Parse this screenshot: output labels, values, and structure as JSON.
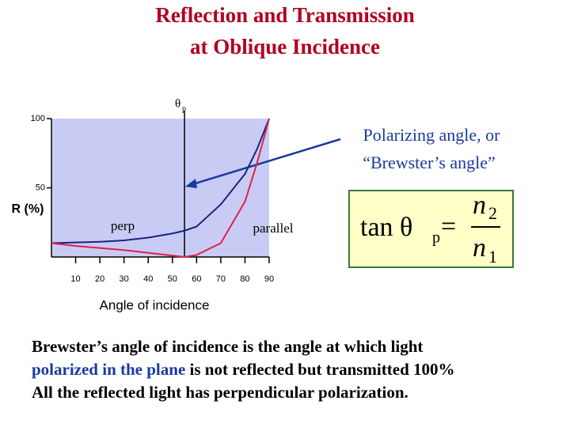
{
  "chart_data": {
    "type": "line",
    "title_lines": [
      "Reflection and Transmission",
      "at Oblique Incidence"
    ],
    "x_label": "Angle of incidence",
    "y_label": "R (%)",
    "x": [
      0,
      10,
      20,
      30,
      40,
      50,
      55,
      60,
      70,
      80,
      85,
      90
    ],
    "series": [
      {
        "name": "perp",
        "color": "#1a237e",
        "values": [
          10,
          10.5,
          11,
          12,
          14,
          17,
          19,
          22,
          38,
          60,
          78,
          100
        ]
      },
      {
        "name": "parallel",
        "color": "#e0204a",
        "values": [
          10,
          8,
          6.5,
          5,
          3,
          1,
          0,
          1.5,
          10,
          40,
          68,
          100
        ]
      }
    ],
    "xlim": [
      0,
      90
    ],
    "xticks": [
      10,
      20,
      30,
      40,
      50,
      60,
      70,
      80,
      90
    ],
    "ylim": [
      0,
      100
    ],
    "yticks": [
      50,
      100
    ],
    "markers": [
      {
        "x": 55,
        "label": "θ",
        "sub": "p"
      }
    ],
    "annotation": [
      "Polarizing angle, or",
      "“Brewster’s angle”"
    ],
    "equation": {
      "lhs": "tan θ",
      "lhs_sub": "p",
      "eq": "=",
      "num": "n",
      "num_sub": "2",
      "den": "n",
      "den_sub": "1"
    }
  },
  "slide": {
    "lines": [
      [
        {
          "text": "Brewster’s angle of incidence is the angle at which light",
          "color": "#000000"
        }
      ],
      [
        {
          "text": "polarized in the plane",
          "color": "#1a3a9c"
        },
        {
          "text": " is not reflected but transmitted 100%",
          "color": "#000000"
        }
      ],
      [
        {
          "text": "All the reflected light has perpendicular  polarization.",
          "color": "#000000"
        }
      ]
    ]
  }
}
